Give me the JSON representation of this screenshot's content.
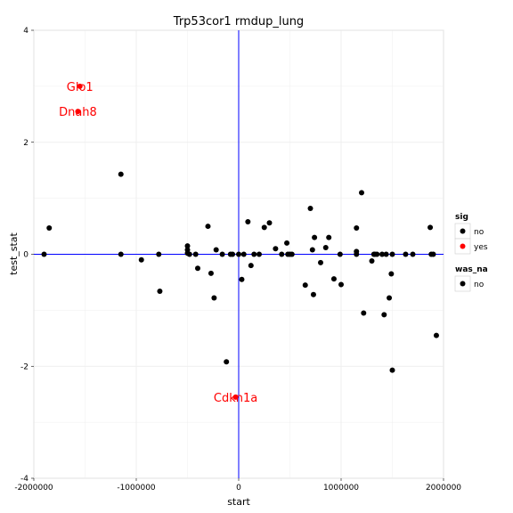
{
  "chart_data": {
    "type": "scatter",
    "title": "Trp53cor1 rmdup_lung",
    "xlabel": "start",
    "ylabel": "test_stat",
    "xlim": [
      -2000000,
      2000000
    ],
    "ylim": [
      -4,
      4
    ],
    "x_ticks": [
      -2000000,
      -1000000,
      0,
      1000000,
      2000000
    ],
    "x_tick_labels": [
      "-2000000",
      "-1000000",
      "0",
      "1000000",
      "2000000"
    ],
    "y_ticks": [
      -4,
      -2,
      0,
      2,
      4
    ],
    "y_tick_labels": [
      "-4",
      "-2",
      "0",
      "2",
      "4"
    ],
    "grid": true,
    "reference_lines": {
      "x": 0,
      "y": 0,
      "color": "#0000ff"
    },
    "colors": {
      "no": "#000000",
      "yes": "#ff0000",
      "reference": "#0000ff",
      "grid": "#ebebeb"
    },
    "legend": {
      "placement": "right",
      "groups": [
        {
          "title": "sig",
          "entries": [
            {
              "label": "no",
              "color": "#000000"
            },
            {
              "label": "yes",
              "color": "#ff0000"
            }
          ]
        },
        {
          "title": "was_na",
          "entries": [
            {
              "label": "no",
              "color": "#000000"
            }
          ]
        }
      ]
    },
    "series": [
      {
        "sig": "no",
        "points": [
          [
            -1900000,
            0
          ],
          [
            -1850000,
            0.47
          ],
          [
            -1150000,
            1.43
          ],
          [
            -1150000,
            0
          ],
          [
            -950000,
            -0.1
          ],
          [
            -780000,
            0
          ],
          [
            -770000,
            -0.66
          ],
          [
            -500000,
            0.15
          ],
          [
            -500000,
            0.08
          ],
          [
            -500000,
            0.02
          ],
          [
            -480000,
            0
          ],
          [
            -420000,
            0
          ],
          [
            -400000,
            -0.25
          ],
          [
            -300000,
            0.5
          ],
          [
            -270000,
            -0.34
          ],
          [
            -240000,
            -0.78
          ],
          [
            -220000,
            0.08
          ],
          [
            -160000,
            0
          ],
          [
            -120000,
            -1.92
          ],
          [
            -80000,
            0
          ],
          [
            -60000,
            0
          ],
          [
            0,
            0
          ],
          [
            30000,
            -0.45
          ],
          [
            50000,
            0
          ],
          [
            90000,
            0.58
          ],
          [
            120000,
            -0.2
          ],
          [
            150000,
            0
          ],
          [
            200000,
            0
          ],
          [
            250000,
            0.48
          ],
          [
            300000,
            0.56
          ],
          [
            360000,
            0.1
          ],
          [
            420000,
            0
          ],
          [
            470000,
            0.2
          ],
          [
            480000,
            0
          ],
          [
            500000,
            0
          ],
          [
            520000,
            0
          ],
          [
            650000,
            -0.55
          ],
          [
            700000,
            0.82
          ],
          [
            720000,
            0.08
          ],
          [
            730000,
            -0.72
          ],
          [
            740000,
            0.3
          ],
          [
            800000,
            -0.15
          ],
          [
            850000,
            0.12
          ],
          [
            880000,
            0.3
          ],
          [
            930000,
            -0.44
          ],
          [
            990000,
            0
          ],
          [
            1000000,
            -0.54
          ],
          [
            1150000,
            0.47
          ],
          [
            1150000,
            0.05
          ],
          [
            1150000,
            0
          ],
          [
            1200000,
            1.1
          ],
          [
            1220000,
            -1.05
          ],
          [
            1300000,
            -0.12
          ],
          [
            1320000,
            0
          ],
          [
            1330000,
            0
          ],
          [
            1350000,
            0
          ],
          [
            1400000,
            0
          ],
          [
            1420000,
            -1.08
          ],
          [
            1440000,
            0
          ],
          [
            1470000,
            -0.78
          ],
          [
            1490000,
            -0.35
          ],
          [
            1500000,
            -2.07
          ],
          [
            1500000,
            0
          ],
          [
            1630000,
            0
          ],
          [
            1700000,
            0
          ],
          [
            1870000,
            0.48
          ],
          [
            1880000,
            0
          ],
          [
            1900000,
            0
          ],
          [
            1930000,
            -1.45
          ]
        ]
      },
      {
        "sig": "yes",
        "points": [
          {
            "x": -1550000,
            "y": 3.0,
            "label": "Glo1"
          },
          {
            "x": -1570000,
            "y": 2.55,
            "label": "Dnah8"
          },
          {
            "x": -30000,
            "y": -2.55,
            "label": "Cdkn1a"
          }
        ]
      }
    ]
  }
}
